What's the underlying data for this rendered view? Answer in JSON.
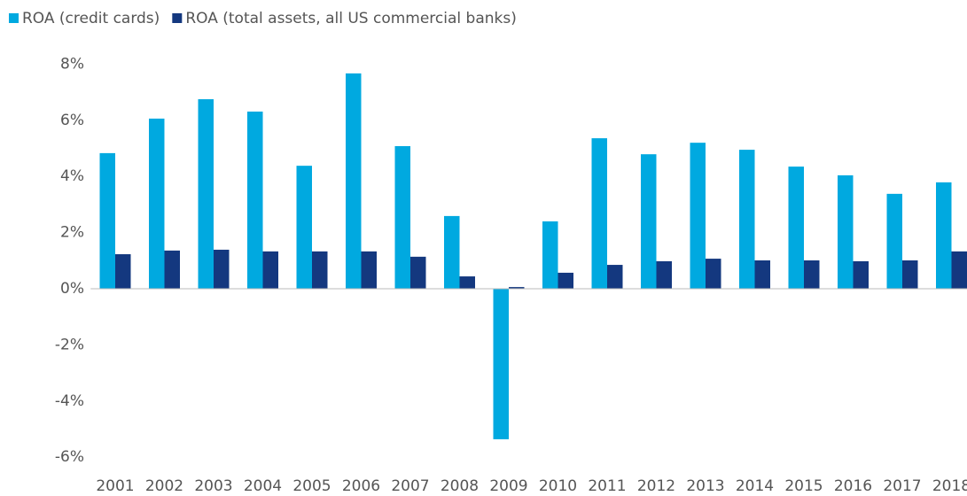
{
  "chart_data": {
    "type": "bar",
    "categories": [
      "2001",
      "2002",
      "2003",
      "2004",
      "2005",
      "2006",
      "2007",
      "2008",
      "2009",
      "2010",
      "2011",
      "2012",
      "2013",
      "2014",
      "2015",
      "2016",
      "2017",
      "2018"
    ],
    "series": [
      {
        "name": "ROA (credit cards)",
        "color": "#00a9e0",
        "values": [
          4.83,
          6.06,
          6.75,
          6.31,
          4.38,
          7.67,
          5.08,
          2.59,
          -5.36,
          2.4,
          5.36,
          4.79,
          5.2,
          4.95,
          4.35,
          4.04,
          3.38,
          3.79
        ]
      },
      {
        "name": "ROA (total assets, all US commercial banks)",
        "color": "#14387f",
        "values": [
          1.23,
          1.36,
          1.39,
          1.33,
          1.33,
          1.33,
          1.14,
          0.44,
          0.06,
          0.57,
          0.85,
          0.98,
          1.07,
          1.01,
          1.01,
          0.98,
          1.01,
          1.33
        ]
      }
    ],
    "ylim": [
      -6,
      8.2
    ],
    "yticks": [
      {
        "value": 8,
        "label": "8%"
      },
      {
        "value": 6,
        "label": "6%"
      },
      {
        "value": 4,
        "label": "4%"
      },
      {
        "value": 2,
        "label": "2%"
      },
      {
        "value": 0,
        "label": "0%"
      },
      {
        "value": -2,
        "label": "-2%"
      },
      {
        "value": -4,
        "label": "-4%"
      },
      {
        "value": -6,
        "label": "-6%"
      }
    ],
    "grid": false,
    "legend": "top-left"
  }
}
